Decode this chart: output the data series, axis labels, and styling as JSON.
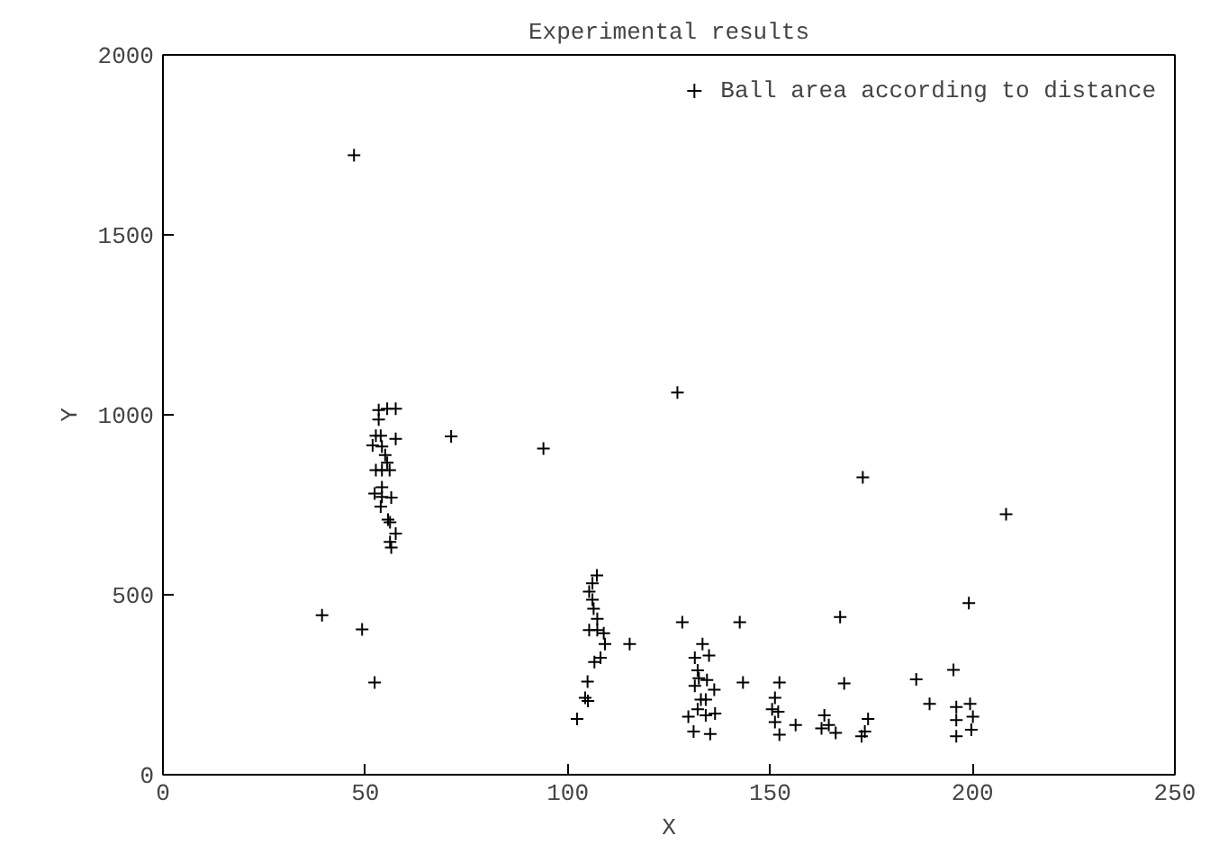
{
  "chart_data": {
    "type": "scatter",
    "title": "Experimental results",
    "xlabel": "X",
    "ylabel": "Y",
    "xlim": [
      0,
      250
    ],
    "ylim": [
      0,
      2000
    ],
    "xticks": [
      0,
      50,
      100,
      150,
      200,
      250
    ],
    "yticks": [
      0,
      500,
      1000,
      1500,
      2000
    ],
    "grid": false,
    "legend": "top right",
    "marker": "cross",
    "series": [
      {
        "name": "Ball area according to distance",
        "color": "#000000",
        "x": [
          53.3,
          55.4,
          57.5,
          53.3,
          52.6,
          53.8,
          57.5,
          51.8,
          54.1,
          54.9,
          55.4,
          52.6,
          54.1,
          56.0,
          54.1,
          52.3,
          54.1,
          56.4,
          53.8,
          55.6,
          56.1,
          57.5,
          56.1,
          56.4,
          71.2,
          39.3,
          49.2,
          52.3,
          47.2,
          94.0,
          127.1,
          172.9,
          208.3,
          199.1,
          107.2,
          106.1,
          105.3,
          106.1,
          106.4,
          107.3,
          105.3,
          107.3,
          108.9,
          109.2,
          108.1,
          106.6,
          104.9,
          104.3,
          105.0,
          102.3,
          115.3,
          128.3,
          142.5,
          133.3,
          131.4,
          134.9,
          132.1,
          132.4,
          134.4,
          136.2,
          131.4,
          132.9,
          134.1,
          132.1,
          129.8,
          134.1,
          136.4,
          131.1,
          135.2,
          143.3,
          152.3,
          151.2,
          150.5,
          152.0,
          151.2,
          152.3,
          156.3,
          167.3,
          168.3,
          163.4,
          164.5,
          162.7,
          166.2,
          174.2,
          173.4,
          172.6,
          186.1,
          189.4,
          195.3,
          196.0,
          196.0,
          196.0,
          199.4,
          200.1,
          199.7
        ],
        "values": [
          1013,
          1017,
          1017,
          987,
          942,
          942,
          933,
          915,
          912,
          888,
          867,
          846,
          846,
          846,
          799,
          781,
          772,
          770,
          745,
          709,
          701,
          670,
          647,
          631,
          940,
          443,
          404,
          256,
          1721,
          906,
          1062,
          826,
          724,
          477,
          554,
          532,
          509,
          486,
          461,
          433,
          402,
          402,
          393,
          363,
          325,
          313,
          259,
          214,
          205,
          155,
          363,
          424,
          424,
          363,
          325,
          331,
          290,
          268,
          263,
          236,
          247,
          209,
          209,
          182,
          161,
          165,
          170,
          120,
          113,
          256,
          256,
          214,
          182,
          175,
          146,
          111,
          138,
          438,
          254,
          165,
          138,
          129,
          116,
          155,
          120,
          107,
          265,
          197,
          291,
          188,
          152,
          107,
          197,
          161,
          125
        ]
      }
    ]
  }
}
